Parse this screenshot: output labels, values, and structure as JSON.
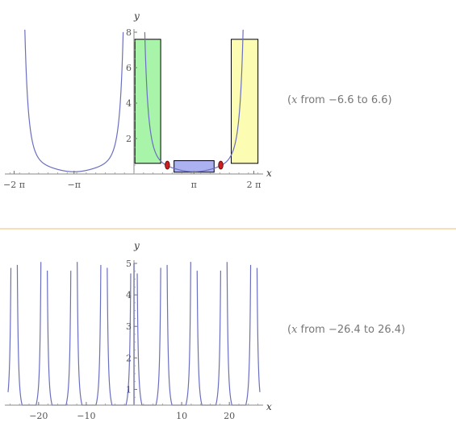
{
  "chart_data": [
    {
      "type": "line",
      "x_label": "x",
      "y_label": "y",
      "xlim": [
        -6.6,
        6.6
      ],
      "ylim": [
        0,
        8
      ],
      "x_ticks": [
        {
          "value": -6.2832,
          "label": "−2 π"
        },
        {
          "value": -3.1416,
          "label": "−π"
        },
        {
          "value": 3.1416,
          "label": "π"
        },
        {
          "value": 6.2832,
          "label": "2 π"
        }
      ],
      "y_ticks": [
        {
          "value": 2,
          "label": "2"
        },
        {
          "value": 4,
          "label": "4"
        },
        {
          "value": 6,
          "label": "6"
        },
        {
          "value": 8,
          "label": "8"
        }
      ],
      "range_text": {
        "prefix": "(",
        "var": "x",
        "rest": " from −6.6 to 6.6)"
      },
      "curve_color": "#6b6fc0",
      "highlights": [
        {
          "kind": "box",
          "color": "#99f299",
          "x_range": [
            0.05,
            1.4
          ],
          "y_range": [
            0.6,
            7.6
          ]
        },
        {
          "kind": "box",
          "color": "#9ea3ec",
          "x_range": [
            2.1,
            4.2
          ],
          "y_range": [
            0.1,
            0.75
          ]
        },
        {
          "kind": "box",
          "color": "#fbfba6",
          "x_range": [
            5.1,
            6.5
          ],
          "y_range": [
            0.6,
            7.6
          ]
        },
        {
          "kind": "point",
          "color": "#cc1f1f",
          "x": 1.75,
          "y": 0.5
        },
        {
          "kind": "point",
          "color": "#cc1f1f",
          "x": 4.55,
          "y": 0.5
        }
      ]
    },
    {
      "type": "line",
      "x_label": "x",
      "y_label": "y",
      "xlim": [
        -26.4,
        26.4
      ],
      "ylim": [
        0.5,
        5
      ],
      "x_ticks": [
        {
          "value": -20,
          "label": "−20"
        },
        {
          "value": -10,
          "label": "−10"
        },
        {
          "value": 10,
          "label": "10"
        },
        {
          "value": 20,
          "label": "20"
        }
      ],
      "y_ticks": [
        {
          "value": 1,
          "label": "1"
        },
        {
          "value": 2,
          "label": "2"
        },
        {
          "value": 3,
          "label": "3"
        },
        {
          "value": 4,
          "label": "4"
        },
        {
          "value": 5,
          "label": "5"
        }
      ],
      "range_text": {
        "prefix": "(",
        "var": "x",
        "rest": " from −26.4 to 26.4)"
      },
      "curve_color": "#6b6fc0",
      "highlights": [
        {
          "kind": "band",
          "color": "#9ea3ec",
          "x_range": [
            -0.15,
            0.15
          ],
          "y_range": [
            0.5,
            5
          ]
        }
      ]
    }
  ]
}
